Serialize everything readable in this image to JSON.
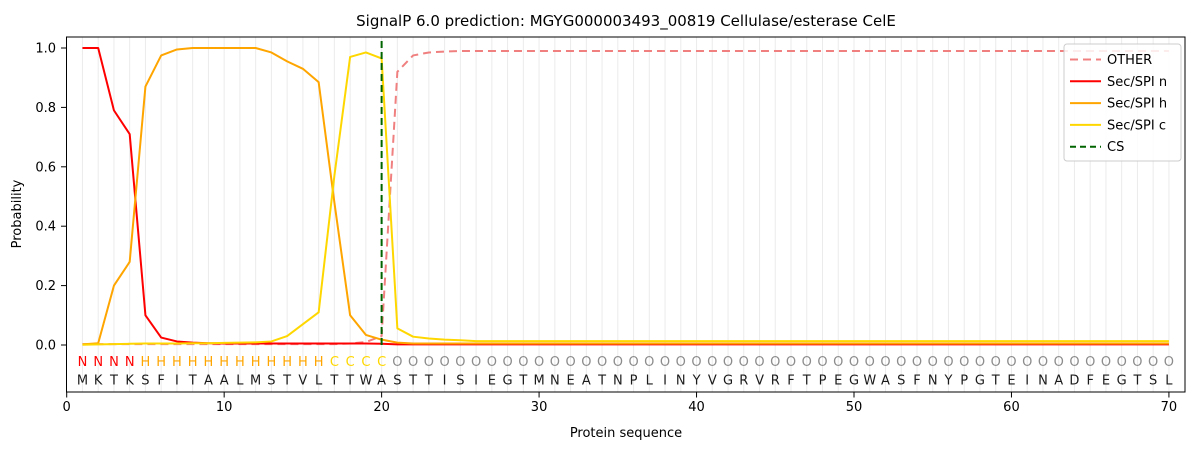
{
  "chart_data": {
    "type": "line",
    "title": "SignalP 6.0 prediction: MGYG000003493_00819 Cellulase/esterase CelE",
    "xlabel": "Protein sequence",
    "ylabel": "Probability",
    "xticks": [
      0,
      10,
      20,
      30,
      40,
      50,
      60,
      70
    ],
    "yticks": [
      0.0,
      0.2,
      0.4,
      0.6,
      0.8,
      1.0
    ],
    "xlim": [
      0,
      71
    ],
    "ylim": [
      -0.16,
      1.04
    ],
    "grid_color": "#ebebeb",
    "x_range_note": "x = residue position 1..70",
    "series": [
      {
        "name": "OTHER",
        "color": "#f08080",
        "dash": "8 5",
        "values": [
          0.003,
          0.003,
          0.003,
          0.003,
          0.003,
          0.003,
          0.003,
          0.003,
          0.003,
          0.003,
          0.003,
          0.003,
          0.003,
          0.003,
          0.003,
          0.003,
          0.003,
          0.005,
          0.01,
          0.03,
          0.92,
          0.975,
          0.985,
          0.988,
          0.99,
          0.99,
          0.99,
          0.99,
          0.99,
          0.99,
          0.99,
          0.99,
          0.99,
          0.99,
          0.99,
          0.99,
          0.99,
          0.99,
          0.99,
          0.99,
          0.99,
          0.99,
          0.99,
          0.99,
          0.99,
          0.99,
          0.99,
          0.99,
          0.99,
          0.99,
          0.99,
          0.99,
          0.99,
          0.99,
          0.99,
          0.99,
          0.99,
          0.99,
          0.99,
          0.99,
          0.99,
          0.99,
          0.99,
          0.99,
          0.99,
          0.99,
          0.99,
          0.99,
          0.99,
          0.99
        ]
      },
      {
        "name": "Sec/SPI n",
        "color": "#ff0000",
        "dash": null,
        "values": [
          1.0,
          1.0,
          0.79,
          0.71,
          0.1,
          0.025,
          0.012,
          0.008,
          0.006,
          0.005,
          0.005,
          0.005,
          0.005,
          0.005,
          0.005,
          0.005,
          0.005,
          0.005,
          0.005,
          0.004,
          0.002,
          0.002,
          0.002,
          0.002,
          0.002,
          0.002,
          0.002,
          0.002,
          0.002,
          0.002,
          0.002,
          0.002,
          0.002,
          0.002,
          0.002,
          0.002,
          0.002,
          0.002,
          0.002,
          0.002,
          0.002,
          0.002,
          0.002,
          0.002,
          0.002,
          0.002,
          0.002,
          0.002,
          0.002,
          0.002,
          0.002,
          0.002,
          0.002,
          0.002,
          0.002,
          0.002,
          0.002,
          0.002,
          0.002,
          0.002,
          0.002,
          0.002,
          0.002,
          0.002,
          0.002,
          0.002,
          0.002,
          0.002,
          0.002,
          0.002
        ]
      },
      {
        "name": "Sec/SPI h",
        "color": "#ffa500",
        "dash": null,
        "values": [
          0.002,
          0.006,
          0.2,
          0.28,
          0.87,
          0.975,
          0.995,
          1.0,
          1.0,
          1.0,
          1.0,
          1.0,
          0.985,
          0.955,
          0.93,
          0.885,
          0.48,
          0.1,
          0.034,
          0.018,
          0.008,
          0.005,
          0.005,
          0.005,
          0.005,
          0.005,
          0.005,
          0.005,
          0.005,
          0.005,
          0.005,
          0.005,
          0.005,
          0.005,
          0.005,
          0.005,
          0.005,
          0.005,
          0.005,
          0.005,
          0.005,
          0.005,
          0.005,
          0.005,
          0.005,
          0.005,
          0.005,
          0.005,
          0.005,
          0.005,
          0.005,
          0.005,
          0.005,
          0.005,
          0.005,
          0.005,
          0.005,
          0.005,
          0.005,
          0.005,
          0.005,
          0.005,
          0.005,
          0.005,
          0.005,
          0.005,
          0.005,
          0.005,
          0.005,
          0.005
        ]
      },
      {
        "name": "Sec/SPI c",
        "color": "#ffd700",
        "dash": null,
        "values": [
          0.001,
          0.002,
          0.003,
          0.004,
          0.005,
          0.005,
          0.005,
          0.006,
          0.006,
          0.007,
          0.008,
          0.009,
          0.012,
          0.03,
          0.07,
          0.11,
          0.57,
          0.97,
          0.985,
          0.965,
          0.056,
          0.028,
          0.022,
          0.018,
          0.016,
          0.013,
          0.013,
          0.013,
          0.013,
          0.013,
          0.013,
          0.013,
          0.013,
          0.013,
          0.013,
          0.013,
          0.013,
          0.013,
          0.013,
          0.013,
          0.013,
          0.013,
          0.013,
          0.013,
          0.013,
          0.013,
          0.013,
          0.013,
          0.013,
          0.013,
          0.013,
          0.013,
          0.013,
          0.013,
          0.013,
          0.013,
          0.013,
          0.013,
          0.013,
          0.013,
          0.013,
          0.013,
          0.013,
          0.013,
          0.013,
          0.013,
          0.013,
          0.013,
          0.013,
          0.013
        ]
      }
    ],
    "cs_marker": {
      "label": "CS",
      "position": 20,
      "color": "#006400",
      "dash": "7 4"
    },
    "sequence": "MKTKSFITAALMSTVLTTWASTTISIEGTMNEATNPLINYVGRVRFTPEGWASFNYPGTEINADFEGTSL",
    "region_labels": "NNNNHHHHHHHHHHHHCCCCOOOOOOOOOOOOOOOOOOOOOOOOOOOOOOOOOOOOOOOOOOOOOOOOOO",
    "region_colors": {
      "N": "#ff0000",
      "H": "#ffa500",
      "C": "#ffd700",
      "O": "#8c8c8c"
    },
    "sequence_color": "#1a1a1a",
    "legend": [
      {
        "label": "OTHER",
        "color": "#f08080",
        "dash": "8 5"
      },
      {
        "label": "Sec/SPI n",
        "color": "#ff0000",
        "dash": null
      },
      {
        "label": "Sec/SPI h",
        "color": "#ffa500",
        "dash": null
      },
      {
        "label": "Sec/SPI c",
        "color": "#ffd700",
        "dash": null
      },
      {
        "label": "CS",
        "color": "#006400",
        "dash": "6 4"
      }
    ],
    "legend_position": "upper right"
  }
}
